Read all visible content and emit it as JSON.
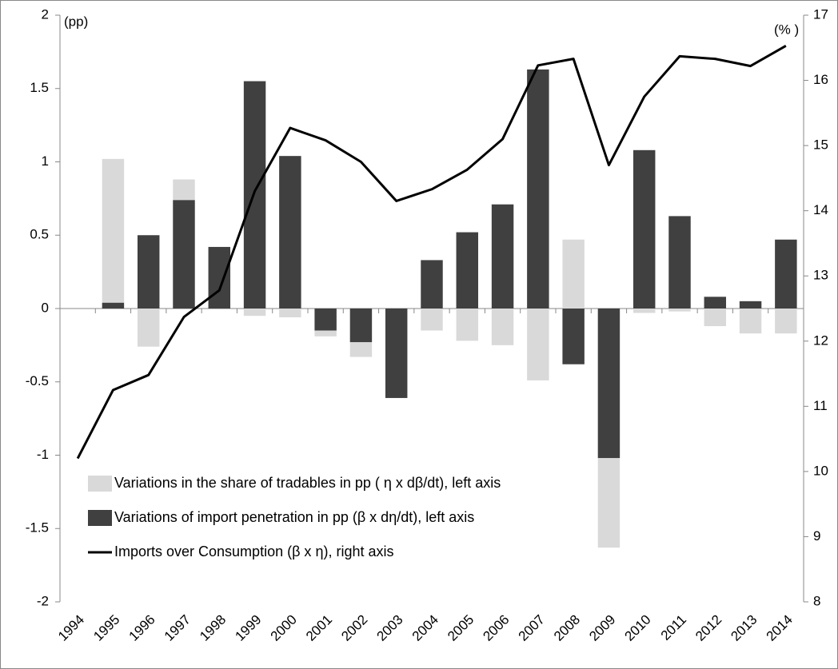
{
  "chart_data": {
    "type": "bar",
    "stacked": true,
    "annotations": [
      "(pp)",
      "(% )"
    ],
    "categories": [
      "1994",
      "1995",
      "1996",
      "1997",
      "1998",
      "1999",
      "2000",
      "2001",
      "2002",
      "2003",
      "2004",
      "2005",
      "2006",
      "2007",
      "2008",
      "2009",
      "2010",
      "2011",
      "2012",
      "2013",
      "2014"
    ],
    "series": [
      {
        "name": "Variations in the share of tradables in pp  ( η x dβ/dt), left axis",
        "color": "#d9d9d9",
        "type": "bar",
        "values": [
          null,
          0.98,
          -0.26,
          0.14,
          0,
          -0.05,
          -0.06,
          -0.04,
          -0.1,
          0,
          -0.15,
          -0.22,
          -0.25,
          -0.49,
          0.47,
          -0.61,
          -0.03,
          -0.02,
          -0.12,
          -0.17,
          -0.17
        ]
      },
      {
        "name": "Variations of import penetration in pp  (β x dη/dt), left axis",
        "color": "#404040",
        "type": "bar",
        "values": [
          null,
          0.04,
          0.5,
          0.74,
          0.42,
          1.55,
          1.04,
          -0.15,
          -0.23,
          -0.61,
          0.33,
          0.52,
          0.71,
          1.63,
          -0.38,
          -1.02,
          1.08,
          0.63,
          0.08,
          0.05,
          0.47
        ]
      },
      {
        "name": "Imports over Consumption (β x η), right axis",
        "color": "#000000",
        "type": "line",
        "axis": "y2",
        "values": [
          10.2,
          11.25,
          11.48,
          12.37,
          12.78,
          14.3,
          15.27,
          15.08,
          14.75,
          14.15,
          14.33,
          14.63,
          15.1,
          16.23,
          16.33,
          14.7,
          15.75,
          16.37,
          16.33,
          16.22,
          16.53
        ]
      }
    ],
    "ylim": [
      -2,
      2
    ],
    "yticks": [
      -2,
      -1.5,
      -1,
      -0.5,
      0,
      0.5,
      1,
      1.5,
      2
    ],
    "y2lim": [
      8,
      17
    ],
    "y2ticks": [
      8,
      9,
      10,
      11,
      12,
      13,
      14,
      15,
      16,
      17
    ],
    "legend": "lower-left",
    "grid": false
  }
}
